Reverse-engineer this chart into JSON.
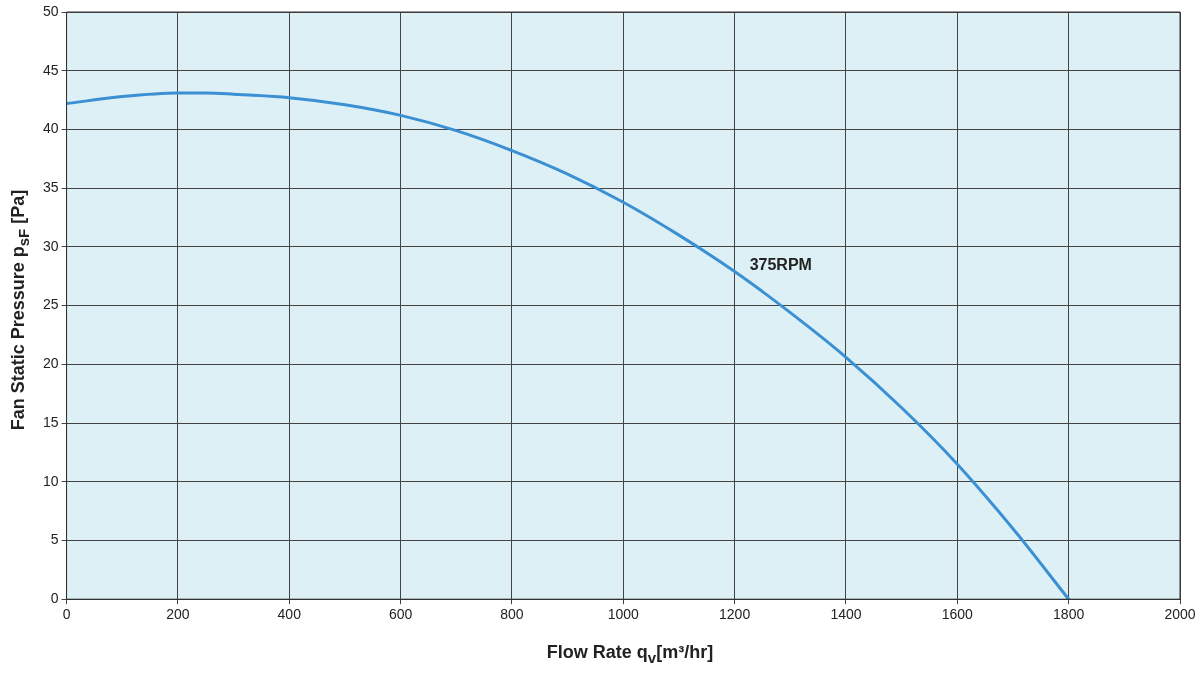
{
  "chart_data": {
    "type": "line",
    "xlabel": "Flow Rate q$_{v}$[m³/hr]",
    "ylabel": "Fan Static Pressure p$_{sF}$ [Pa]",
    "x": [
      0,
      100,
      200,
      250,
      300,
      400,
      500,
      600,
      700,
      800,
      900,
      1000,
      1100,
      1200,
      1300,
      1400,
      1500,
      1600,
      1700,
      1800
    ],
    "series": [
      {
        "name": "375RPM",
        "color": "#3b8fd3",
        "values": [
          42.2,
          42.8,
          43.1,
          43.1,
          43.0,
          42.7,
          42.1,
          41.2,
          39.9,
          38.2,
          36.2,
          33.8,
          31.0,
          27.9,
          24.4,
          20.6,
          16.3,
          11.5,
          6.0,
          0
        ]
      }
    ],
    "xlim": [
      0,
      2000
    ],
    "xticks": [
      0,
      200,
      400,
      600,
      800,
      1000,
      1200,
      1400,
      1600,
      1800,
      2000
    ],
    "ylim": [
      0,
      50
    ],
    "yticks": [
      0,
      5,
      10,
      15,
      20,
      25,
      30,
      35,
      40,
      45,
      50
    ],
    "grid": true,
    "legend": false,
    "marker": "none",
    "line_style": "solid"
  }
}
